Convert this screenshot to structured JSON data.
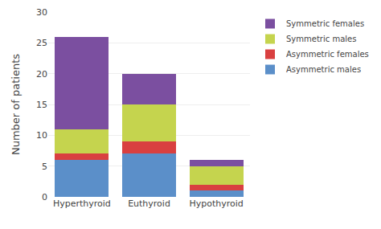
{
  "chart_data": {
    "type": "bar",
    "stacked": true,
    "categories": [
      "Hyperthyroid",
      "Euthyroid",
      "Hypothyroid"
    ],
    "series": [
      {
        "name": "Asymmetric males",
        "color": "#5B8FC9",
        "values": [
          6,
          7,
          1
        ]
      },
      {
        "name": "Asymmetric females",
        "color": "#D94040",
        "values": [
          1,
          2,
          1
        ]
      },
      {
        "name": "Symmetric males",
        "color": "#C5D44E",
        "values": [
          4,
          6,
          3
        ]
      },
      {
        "name": "Symmetric females",
        "color": "#7B4FA0",
        "values": [
          15,
          5,
          1
        ]
      }
    ],
    "ylabel": "Number of patients",
    "ylim": [
      0,
      30
    ],
    "yticks": [
      0,
      5,
      10,
      15,
      20,
      25,
      30
    ],
    "grid": true,
    "legend": "right"
  }
}
